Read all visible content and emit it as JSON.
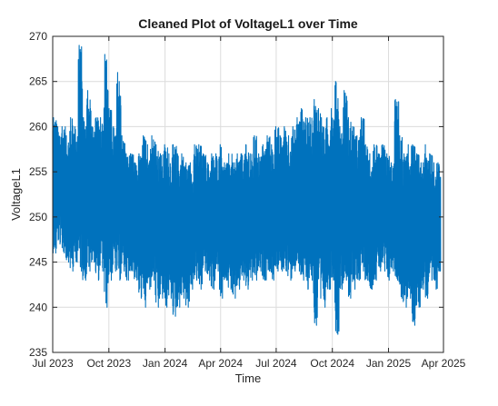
{
  "chart_data": {
    "type": "line",
    "title": "Cleaned Plot of VoltageL1 over Time",
    "xlabel": "Time",
    "ylabel": "VoltageL1",
    "xlim": [
      "2023-07-01",
      "2025-04-01"
    ],
    "ylim": [
      235,
      270
    ],
    "x_ticks": [
      {
        "date": "2023-07-01",
        "label": "Jul 2023"
      },
      {
        "date": "2023-10-01",
        "label": "Oct 2023"
      },
      {
        "date": "2024-01-01",
        "label": "Jan 2024"
      },
      {
        "date": "2024-04-01",
        "label": "Apr 2024"
      },
      {
        "date": "2024-07-01",
        "label": "Jul 2024"
      },
      {
        "date": "2024-10-01",
        "label": "Oct 2024"
      },
      {
        "date": "2025-01-01",
        "label": "Jan 2025"
      },
      {
        "date": "2025-04-01",
        "label": "Apr 2025"
      }
    ],
    "y_ticks": [
      235,
      240,
      245,
      250,
      255,
      260,
      265,
      270
    ],
    "grid": true,
    "legend": "none",
    "series_color": "#0072BD",
    "series": [
      {
        "x": [
          "2023-07-01",
          "2023-07-08",
          "2023-07-15",
          "2023-07-22",
          "2023-07-29",
          "2023-08-05",
          "2023-08-12",
          "2023-08-19",
          "2023-08-26",
          "2023-09-02",
          "2023-09-09",
          "2023-09-16",
          "2023-09-23",
          "2023-09-30",
          "2023-10-07",
          "2023-10-14",
          "2023-10-21",
          "2023-10-28",
          "2023-11-04",
          "2023-11-11",
          "2023-11-18",
          "2023-11-25",
          "2023-12-02",
          "2023-12-09",
          "2023-12-16",
          "2023-12-23",
          "2023-12-30",
          "2024-01-06",
          "2024-01-13",
          "2024-01-20",
          "2024-01-27",
          "2024-02-03",
          "2024-02-10",
          "2024-02-17",
          "2024-02-24",
          "2024-03-02",
          "2024-03-09",
          "2024-03-16",
          "2024-03-23",
          "2024-03-30",
          "2024-04-06",
          "2024-04-13",
          "2024-04-20",
          "2024-04-27",
          "2024-05-04",
          "2024-05-11",
          "2024-05-18",
          "2024-05-25",
          "2024-06-01",
          "2024-06-08",
          "2024-06-15",
          "2024-06-22",
          "2024-06-29",
          "2024-07-06",
          "2024-07-13",
          "2024-07-20",
          "2024-07-27",
          "2024-08-03",
          "2024-08-10",
          "2024-08-17",
          "2024-08-24",
          "2024-08-31",
          "2024-09-07",
          "2024-09-14",
          "2024-09-21",
          "2024-09-28",
          "2024-10-05",
          "2024-10-12",
          "2024-10-19",
          "2024-10-26",
          "2024-11-02",
          "2024-11-09",
          "2024-11-16",
          "2024-11-23",
          "2024-11-30",
          "2024-12-07",
          "2024-12-14",
          "2024-12-21",
          "2024-12-28",
          "2025-01-04",
          "2025-01-11",
          "2025-01-18",
          "2025-01-25",
          "2025-02-01",
          "2025-02-08",
          "2025-02-15",
          "2025-02-22",
          "2025-03-01",
          "2025-03-08",
          "2025-03-15",
          "2025-03-22"
        ],
        "min": [
          246,
          247,
          246,
          245,
          244,
          245,
          244,
          243,
          244,
          245,
          243,
          244,
          240,
          243,
          244,
          243,
          244,
          243,
          244,
          243,
          241,
          240,
          242,
          243,
          240,
          241,
          240,
          241,
          239,
          240,
          241,
          240,
          242,
          243,
          242,
          244,
          243,
          242,
          244,
          241,
          243,
          242,
          241,
          242,
          243,
          242,
          243,
          243,
          244,
          243,
          244,
          243,
          244,
          244,
          244,
          243,
          244,
          244,
          243,
          242,
          243,
          238,
          241,
          240,
          242,
          243,
          237,
          242,
          243,
          241,
          242,
          243,
          244,
          243,
          242,
          243,
          244,
          244,
          243,
          244,
          243,
          241,
          240,
          241,
          238,
          240,
          242,
          241,
          243,
          242,
          244
        ],
        "max": [
          261,
          260,
          260,
          259,
          261,
          260,
          269,
          261,
          264,
          260,
          261,
          261,
          268,
          262,
          260,
          266,
          259,
          257,
          257,
          256,
          257,
          259,
          258,
          259,
          258,
          257,
          258,
          257,
          258,
          257,
          257,
          256,
          256,
          258,
          258,
          257,
          256,
          257,
          257,
          258,
          256,
          257,
          256,
          257,
          257,
          258,
          257,
          259,
          257,
          258,
          259,
          258,
          260,
          259,
          260,
          259,
          260,
          261,
          262,
          261,
          261,
          263,
          262,
          260,
          261,
          262,
          265,
          260,
          264,
          261,
          260,
          259,
          261,
          258,
          257,
          258,
          257,
          258,
          257,
          256,
          263,
          259,
          257,
          258,
          258,
          257,
          256,
          258,
          257,
          256,
          256
        ]
      }
    ]
  }
}
